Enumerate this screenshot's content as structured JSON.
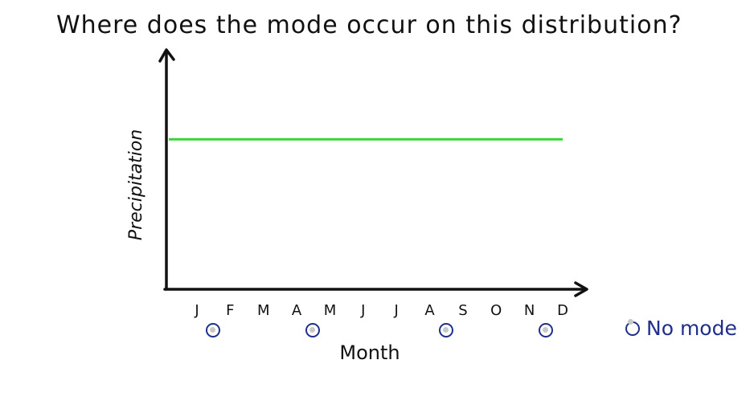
{
  "question": "Where does the mode occur on this distribution?",
  "no_mode_label": "No mode",
  "colors": {
    "line": "#3ad63a",
    "axis": "#111111",
    "radio": "#1f2f8a"
  },
  "chart_data": {
    "type": "line",
    "xlabel": "Month",
    "ylabel": "Precipitation",
    "categories": [
      "J",
      "F",
      "M",
      "A",
      "M",
      "J",
      "J",
      "A",
      "S",
      "O",
      "N",
      "D"
    ],
    "series": [
      {
        "values": [
          1,
          1,
          1,
          1,
          1,
          1,
          1,
          1,
          1,
          1,
          1,
          1
        ]
      }
    ],
    "ylim": [
      0,
      1.5
    ],
    "grid": false,
    "answer_options": [
      "J",
      "A",
      "A",
      "N"
    ]
  }
}
